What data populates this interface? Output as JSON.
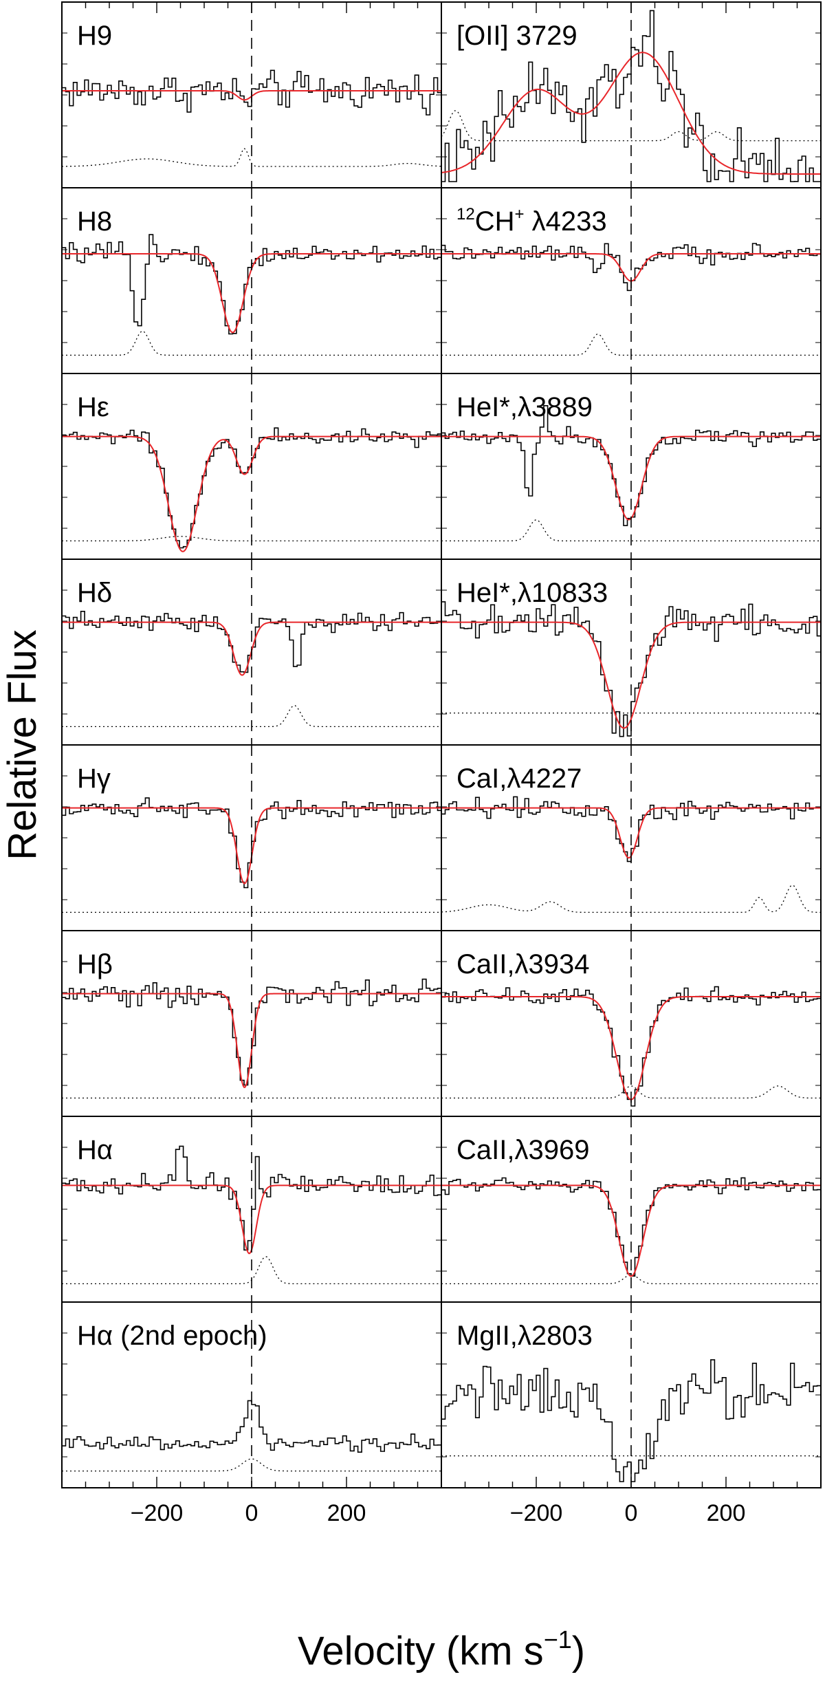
{
  "chart_data": {
    "type": "line",
    "ylabel": "Relative Flux",
    "xlabel_main": "Velocity (km s",
    "xlabel_sup": "−1",
    "xlabel_close": ")",
    "xlim": [
      -400,
      400
    ],
    "xticks": [
      -200,
      0,
      200
    ],
    "xtick_labels": [
      "−200",
      "0",
      "200"
    ],
    "vertical_reference_line": 0,
    "colors": {
      "fit": "#e8262a",
      "data": "#000000",
      "error": "#000000",
      "frame": "#000000"
    },
    "panels": [
      {
        "label": "H9",
        "column": "left",
        "row": 0,
        "continuum": 0.55,
        "fit_components": [
          {
            "center": -15,
            "depth": 0.06,
            "width": 15
          }
        ],
        "error_bumps": [
          {
            "center": -220,
            "amp": 0.05,
            "width": 60
          },
          {
            "center": -15,
            "amp": 0.12,
            "width": 8
          },
          {
            "center": 330,
            "amp": 0.02,
            "width": 30
          }
        ],
        "error_base": 0.05,
        "noise": 0.1
      },
      {
        "label": "[OII] 3729",
        "column": "right",
        "row": 0,
        "emission": true,
        "continuum": 0.0,
        "fit_components": [
          {
            "center": -200,
            "amp": 0.55,
            "width": 70
          },
          {
            "center": 25,
            "amp": 0.8,
            "width": 75
          }
        ],
        "error_bumps": [
          {
            "center": -370,
            "amp": 0.2,
            "width": 15
          },
          {
            "center": 100,
            "amp": 0.06,
            "width": 15
          },
          {
            "center": 180,
            "amp": 0.06,
            "width": 15
          }
        ],
        "error_base": 0.22,
        "noise": 0.22
      },
      {
        "label": "H8",
        "column": "left",
        "row": 1,
        "continuum": 0.7,
        "fit_components": [
          {
            "center": -40,
            "depth": 0.52,
            "width": 22
          }
        ],
        "error_bumps": [
          {
            "center": -230,
            "amp": 0.16,
            "width": 14
          }
        ],
        "error_base": 0.03,
        "noise": 0.05,
        "data_extra": [
          {
            "center": -240,
            "depth": 0.5,
            "width": 10
          },
          {
            "center": -210,
            "amp": 0.2,
            "width": 5
          }
        ]
      },
      {
        "label": "CH+ λ4233",
        "sup_prefix": "12",
        "label_main": "CH",
        "sup_suffix": "+",
        "label_tail": " λ4233",
        "column": "right",
        "row": 1,
        "continuum": 0.7,
        "fit_components": [
          {
            "center": 0,
            "depth": 0.18,
            "width": 20
          }
        ],
        "error_bumps": [
          {
            "center": -70,
            "amp": 0.14,
            "width": 14
          }
        ],
        "error_base": 0.03,
        "noise": 0.05,
        "data_extra": [
          {
            "center": -75,
            "depth": 0.12,
            "width": 10
          }
        ]
      },
      {
        "label": "Hε",
        "column": "left",
        "row": 2,
        "continuum": 0.72,
        "fit_components": [
          {
            "center": -145,
            "depth": 0.76,
            "width": 30
          },
          {
            "center": -15,
            "depth": 0.25,
            "width": 17
          }
        ],
        "error_bumps": [
          {
            "center": -150,
            "amp": 0.03,
            "width": 40
          }
        ],
        "error_base": 0.03,
        "noise": 0.045
      },
      {
        "label": "HeI*,λ3889",
        "column": "right",
        "row": 2,
        "continuum": 0.72,
        "fit_components": [
          {
            "center": -5,
            "depth": 0.55,
            "width": 27
          }
        ],
        "error_bumps": [
          {
            "center": -200,
            "amp": 0.14,
            "width": 15
          }
        ],
        "error_base": 0.03,
        "noise": 0.045,
        "data_extra": [
          {
            "center": -215,
            "depth": 0.4,
            "width": 8
          },
          {
            "center": -180,
            "amp": 0.2,
            "width": 5
          }
        ]
      },
      {
        "label": "Hδ",
        "column": "left",
        "row": 3,
        "continuum": 0.72,
        "fit_components": [
          {
            "center": -20,
            "depth": 0.35,
            "width": 18
          }
        ],
        "error_bumps": [
          {
            "center": 90,
            "amp": 0.14,
            "width": 14
          }
        ],
        "error_base": 0.03,
        "noise": 0.05,
        "data_extra": [
          {
            "center": 95,
            "depth": 0.3,
            "width": 8
          }
        ]
      },
      {
        "label": "HeI*,λ10833",
        "column": "right",
        "row": 3,
        "continuum": 0.72,
        "fit_components": [
          {
            "center": -15,
            "depth": 0.7,
            "width": 35
          }
        ],
        "error_bumps": [],
        "error_base": 0.12,
        "noise": 0.12
      },
      {
        "label": "Hγ",
        "column": "left",
        "row": 4,
        "continuum": 0.72,
        "fit_components": [
          {
            "center": -15,
            "depth": 0.5,
            "width": 16
          }
        ],
        "error_bumps": [],
        "error_base": 0.03,
        "noise": 0.05
      },
      {
        "label": "CaI,λ4227",
        "column": "right",
        "row": 4,
        "continuum": 0.72,
        "fit_components": [
          {
            "center": -5,
            "depth": 0.33,
            "width": 18
          }
        ],
        "error_bumps": [
          {
            "center": -300,
            "amp": 0.05,
            "width": 40
          },
          {
            "center": -170,
            "amp": 0.07,
            "width": 20
          },
          {
            "center": 270,
            "amp": 0.1,
            "width": 10
          },
          {
            "center": 340,
            "amp": 0.18,
            "width": 14
          }
        ],
        "error_base": 0.03,
        "noise": 0.06
      },
      {
        "label": "Hβ",
        "column": "left",
        "row": 5,
        "continuum": 0.72,
        "fit_components": [
          {
            "center": -15,
            "depth": 0.62,
            "width": 15
          }
        ],
        "error_bumps": [],
        "error_base": 0.03,
        "noise": 0.07
      },
      {
        "label": "CaII,λ3934",
        "column": "right",
        "row": 5,
        "continuum": 0.7,
        "fit_components": [
          {
            "center": 0,
            "depth": 0.68,
            "width": 30
          }
        ],
        "error_bumps": [
          {
            "center": 0,
            "amp": 0.08,
            "width": 15
          },
          {
            "center": 310,
            "amp": 0.08,
            "width": 20
          }
        ],
        "error_base": 0.03,
        "noise": 0.045
      },
      {
        "label": "Hα",
        "column": "left",
        "row": 6,
        "continuum": 0.68,
        "fit_components": [
          {
            "center": -5,
            "depth": 0.45,
            "width": 15
          }
        ],
        "error_bumps": [
          {
            "center": 30,
            "amp": 0.18,
            "width": 15
          }
        ],
        "error_base": 0.03,
        "noise": 0.06,
        "data_extra": [
          {
            "center": 10,
            "amp": 0.45,
            "width": 5
          },
          {
            "center": -150,
            "amp": 0.25,
            "width": 10
          }
        ]
      },
      {
        "label": "CaII,λ3969",
        "column": "right",
        "row": 6,
        "continuum": 0.68,
        "fit_components": [
          {
            "center": 0,
            "depth": 0.6,
            "width": 25
          }
        ],
        "error_bumps": [
          {
            "center": 0,
            "amp": 0.06,
            "width": 15
          }
        ],
        "error_base": 0.03,
        "noise": 0.045
      },
      {
        "label": "Hα (2nd epoch)",
        "column": "left",
        "row": 7,
        "continuum": 0.2,
        "fit_components": [],
        "error_bumps": [
          {
            "center": 0,
            "amp": 0.08,
            "width": 20
          }
        ],
        "error_base": 0.02,
        "noise": 0.04,
        "data_extra": [
          {
            "center": 0,
            "amp": 0.28,
            "width": 15
          }
        ]
      },
      {
        "label": "MgII,λ2803",
        "column": "right",
        "row": 7,
        "continuum": 0.55,
        "fit_components": [],
        "error_bumps": [],
        "error_base": 0.12,
        "noise": 0.15,
        "data_extra": [
          {
            "center": 0,
            "depth": 0.55,
            "width": 40
          }
        ]
      }
    ]
  }
}
